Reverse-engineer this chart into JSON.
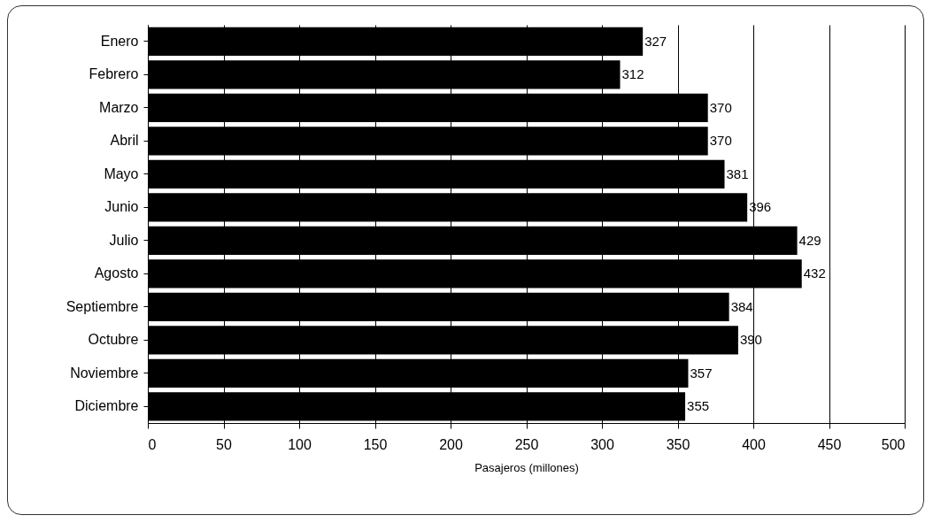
{
  "chart_data": {
    "type": "bar",
    "orientation": "horizontal",
    "xlabel": "Pasajeros (millones)",
    "categories": [
      "Enero",
      "Febrero",
      "Marzo",
      "Abril",
      "Mayo",
      "Junio",
      "Julio",
      "Agosto",
      "Septiembre",
      "Octubre",
      "Noviembre",
      "Diciembre"
    ],
    "values": [
      327,
      312,
      370,
      370,
      381,
      396,
      429,
      432,
      384,
      390,
      357,
      355
    ],
    "color": "#000000",
    "xlim": [
      0,
      500
    ],
    "xticks": [
      0,
      50,
      100,
      150,
      200,
      250,
      300,
      350,
      400,
      450,
      500
    ],
    "grid": "x",
    "data_labels": true
  }
}
